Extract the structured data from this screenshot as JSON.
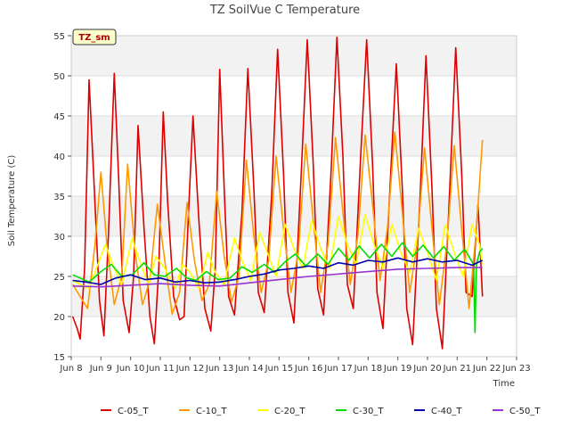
{
  "chart_data": {
    "type": "line",
    "title": "TZ SoilVue C Temperature",
    "xlabel": "Time",
    "ylabel": "Soil Temperature (C)",
    "badge": "TZ_sm",
    "xlim": [
      8,
      23
    ],
    "ylim": [
      15,
      55
    ],
    "x_ticks": [
      8,
      9,
      10,
      11,
      12,
      13,
      14,
      15,
      16,
      17,
      18,
      19,
      20,
      21,
      22,
      23
    ],
    "x_tick_labels": [
      "Jun 8",
      "Jun 9",
      "Jun 10",
      "Jun 11",
      "Jun 12",
      "Jun 13",
      "Jun 14",
      "Jun 15",
      "Jun 16",
      "Jun 17",
      "Jun 18",
      "Jun 19",
      "Jun 20",
      "Jun 21",
      "Jun 22",
      "Jun 23"
    ],
    "y_ticks": [
      15,
      20,
      25,
      30,
      35,
      40,
      45,
      50,
      55
    ],
    "grid": true,
    "legend_position": "bottom",
    "series": [
      {
        "name": "C-05_T",
        "color": "#dd0000",
        "x": [
          8.05,
          8.2,
          8.3,
          8.45,
          8.6,
          8.75,
          8.95,
          9.1,
          9.25,
          9.45,
          9.6,
          9.75,
          9.95,
          10.1,
          10.25,
          10.45,
          10.65,
          10.8,
          10.95,
          11.1,
          11.25,
          11.45,
          11.65,
          11.8,
          11.95,
          12.1,
          12.3,
          12.5,
          12.7,
          12.85,
          13.0,
          13.15,
          13.3,
          13.5,
          13.75,
          13.95,
          14.15,
          14.3,
          14.5,
          14.75,
          14.95,
          15.15,
          15.3,
          15.5,
          15.75,
          15.95,
          16.15,
          16.3,
          16.5,
          16.75,
          16.95,
          17.15,
          17.3,
          17.5,
          17.75,
          17.95,
          18.15,
          18.3,
          18.5,
          18.75,
          18.95,
          19.15,
          19.3,
          19.5,
          19.75,
          19.95,
          20.15,
          20.3,
          20.5,
          20.75,
          20.95,
          21.15,
          21.3,
          21.5,
          21.7,
          21.85
        ],
        "values": [
          20.0,
          18.5,
          17.2,
          26.0,
          49.5,
          38.0,
          22.0,
          17.6,
          30.0,
          50.3,
          37.0,
          22.0,
          18.0,
          25.0,
          43.8,
          31.0,
          20.0,
          16.6,
          26.0,
          45.5,
          34.2,
          22.5,
          19.6,
          20.0,
          33.0,
          45.0,
          32.0,
          21.0,
          18.2,
          26.0,
          50.8,
          36.0,
          22.5,
          20.2,
          33.0,
          50.9,
          36.0,
          23.0,
          20.5,
          35.0,
          53.3,
          38.0,
          23.0,
          19.2,
          38.0,
          54.5,
          39.0,
          23.5,
          20.2,
          38.0,
          54.8,
          40.0,
          24.0,
          21.0,
          40.0,
          54.5,
          39.0,
          23.0,
          18.5,
          37.0,
          51.5,
          36.0,
          21.0,
          16.5,
          35.0,
          52.5,
          36.0,
          21.0,
          16.0,
          36.0,
          53.5,
          38.0,
          23.0,
          22.5,
          34.0,
          22.5
        ]
      },
      {
        "name": "C-10_T",
        "color": "#ff9900",
        "x": [
          8.05,
          8.3,
          8.55,
          8.8,
          9.0,
          9.2,
          9.45,
          9.7,
          9.9,
          10.15,
          10.4,
          10.65,
          10.9,
          11.15,
          11.4,
          11.65,
          11.9,
          12.15,
          12.4,
          12.65,
          12.9,
          13.15,
          13.4,
          13.65,
          13.9,
          14.15,
          14.4,
          14.65,
          14.9,
          15.15,
          15.4,
          15.65,
          15.9,
          16.15,
          16.4,
          16.65,
          16.9,
          17.15,
          17.4,
          17.65,
          17.9,
          18.15,
          18.4,
          18.65,
          18.9,
          19.15,
          19.4,
          19.65,
          19.9,
          20.15,
          20.4,
          20.65,
          20.9,
          21.15,
          21.4,
          21.65,
          21.85
        ],
        "values": [
          24.0,
          22.5,
          21.0,
          29.0,
          38.0,
          29.0,
          21.5,
          25.0,
          39.0,
          28.0,
          21.5,
          24.5,
          34.0,
          27.0,
          20.3,
          23.0,
          34.2,
          27.0,
          22.0,
          24.0,
          35.6,
          27.5,
          21.8,
          25.0,
          39.5,
          30.0,
          23.0,
          27.0,
          40.0,
          31.0,
          23.0,
          28.0,
          41.5,
          32.0,
          23.0,
          29.0,
          42.3,
          33.0,
          24.0,
          30.0,
          42.6,
          34.0,
          24.5,
          31.0,
          43.0,
          33.0,
          23.0,
          29.0,
          41.0,
          31.0,
          21.5,
          29.0,
          41.3,
          31.0,
          21.0,
          31.0,
          42.0
        ]
      },
      {
        "name": "C-20_T",
        "color": "#ffff00",
        "x": [
          8.05,
          8.3,
          8.6,
          8.85,
          9.15,
          9.45,
          9.7,
          10.05,
          10.35,
          10.6,
          10.85,
          11.15,
          11.5,
          11.75,
          12.0,
          12.3,
          12.6,
          12.85,
          13.15,
          13.5,
          13.75,
          14.05,
          14.35,
          14.6,
          14.9,
          15.2,
          15.5,
          15.8,
          16.1,
          16.4,
          16.7,
          17.0,
          17.3,
          17.6,
          17.9,
          18.2,
          18.5,
          18.8,
          19.1,
          19.4,
          19.7,
          20.0,
          20.3,
          20.6,
          20.9,
          21.2,
          21.5,
          21.75,
          21.85
        ],
        "values": [
          24.5,
          24.0,
          23.5,
          26.0,
          29.0,
          26.0,
          24.0,
          29.7,
          26.5,
          24.0,
          27.5,
          26.0,
          23.5,
          26.5,
          25.5,
          23.5,
          28.0,
          25.5,
          24.0,
          29.8,
          27.0,
          24.5,
          30.5,
          28.0,
          25.0,
          31.5,
          28.5,
          26.0,
          32.0,
          28.5,
          26.0,
          32.5,
          29.0,
          26.5,
          32.7,
          29.0,
          26.0,
          31.5,
          28.0,
          25.5,
          31.0,
          28.0,
          24.5,
          31.5,
          28.0,
          25.0,
          31.5,
          29.0,
          26.5
        ]
      },
      {
        "name": "C-30_T",
        "color": "#00dd00",
        "x": [
          8.05,
          8.3,
          8.6,
          9.0,
          9.35,
          9.7,
          10.05,
          10.45,
          10.8,
          11.15,
          11.55,
          11.9,
          12.2,
          12.55,
          12.95,
          13.35,
          13.75,
          14.1,
          14.5,
          14.85,
          15.2,
          15.55,
          15.9,
          16.3,
          16.65,
          17.0,
          17.35,
          17.7,
          18.05,
          18.45,
          18.8,
          19.15,
          19.5,
          19.85,
          20.2,
          20.55,
          20.9,
          21.25,
          21.55,
          21.6,
          21.65,
          21.75,
          21.85
        ],
        "values": [
          25.2,
          24.8,
          24.3,
          25.6,
          26.5,
          25.0,
          25.2,
          26.7,
          25.2,
          25.0,
          26.0,
          24.8,
          24.5,
          25.6,
          24.6,
          24.8,
          26.2,
          25.5,
          26.5,
          25.5,
          26.8,
          27.8,
          26.3,
          27.8,
          26.5,
          28.5,
          27.0,
          28.8,
          27.3,
          29.0,
          27.5,
          29.2,
          27.5,
          28.9,
          27.3,
          28.7,
          27.0,
          28.4,
          26.5,
          18.0,
          26.5,
          28.0,
          28.5
        ]
      },
      {
        "name": "C-40_T",
        "color": "#0000aa",
        "x": [
          8.05,
          8.5,
          9.0,
          9.5,
          10.0,
          10.5,
          11.0,
          11.5,
          12.0,
          12.5,
          13.0,
          13.5,
          14.0,
          14.5,
          15.0,
          15.5,
          16.0,
          16.5,
          17.0,
          17.5,
          18.0,
          18.5,
          19.0,
          19.5,
          20.0,
          20.5,
          21.0,
          21.5,
          21.85
        ],
        "values": [
          24.5,
          24.3,
          24.0,
          24.8,
          25.2,
          24.6,
          24.8,
          24.3,
          24.5,
          24.2,
          24.3,
          24.6,
          25.0,
          25.3,
          25.8,
          26.0,
          26.3,
          26.0,
          26.7,
          26.4,
          27.0,
          26.8,
          27.3,
          26.8,
          27.2,
          26.8,
          27.0,
          26.4,
          27.0
        ]
      },
      {
        "name": "C-50_T",
        "color": "#9933cc",
        "x": [
          8.05,
          9.0,
          10.0,
          11.0,
          12.0,
          13.0,
          14.0,
          15.0,
          16.0,
          17.0,
          18.0,
          19.0,
          20.0,
          21.0,
          21.85
        ],
        "values": [
          23.8,
          23.7,
          23.9,
          24.1,
          23.9,
          23.8,
          24.2,
          24.6,
          25.0,
          25.3,
          25.6,
          25.9,
          26.0,
          26.1,
          26.1
        ]
      }
    ]
  }
}
